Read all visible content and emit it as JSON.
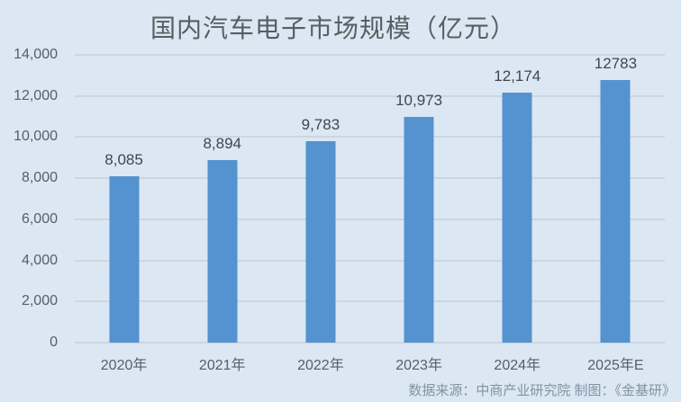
{
  "title": "国内汽车电子市场规模（亿元）",
  "source_note": "数据来源：中商产业研究院  制图：《金基研》",
  "chart_data": {
    "type": "bar",
    "title": "国内汽车电子市场规模（亿元）",
    "categories": [
      "2020年",
      "2021年",
      "2022年",
      "2023年",
      "2024年",
      "2025年E"
    ],
    "values": [
      8085,
      8894,
      9783,
      10973,
      12174,
      12783
    ],
    "value_labels": [
      "8,085",
      "8,894",
      "9,783",
      "10,973",
      "12,174",
      "12783"
    ],
    "xlabel": "",
    "ylabel": "",
    "ylim": [
      0,
      14000
    ],
    "ytick_values": [
      0,
      2000,
      4000,
      6000,
      8000,
      10000,
      12000,
      14000
    ],
    "ytick_labels": [
      "0",
      "2,000",
      "4,000",
      "6,000",
      "8,000",
      "10,000",
      "12,000",
      "14,000"
    ],
    "grid": true,
    "legend": false
  },
  "colors": {
    "background": "#dbe7f2",
    "bar": "#5592d0",
    "gridline": "#ccd6e1",
    "title_text": "#565f62",
    "value_label_text": "#3f4650",
    "axis_text": "#53606d",
    "source_text": "#8294a5"
  }
}
